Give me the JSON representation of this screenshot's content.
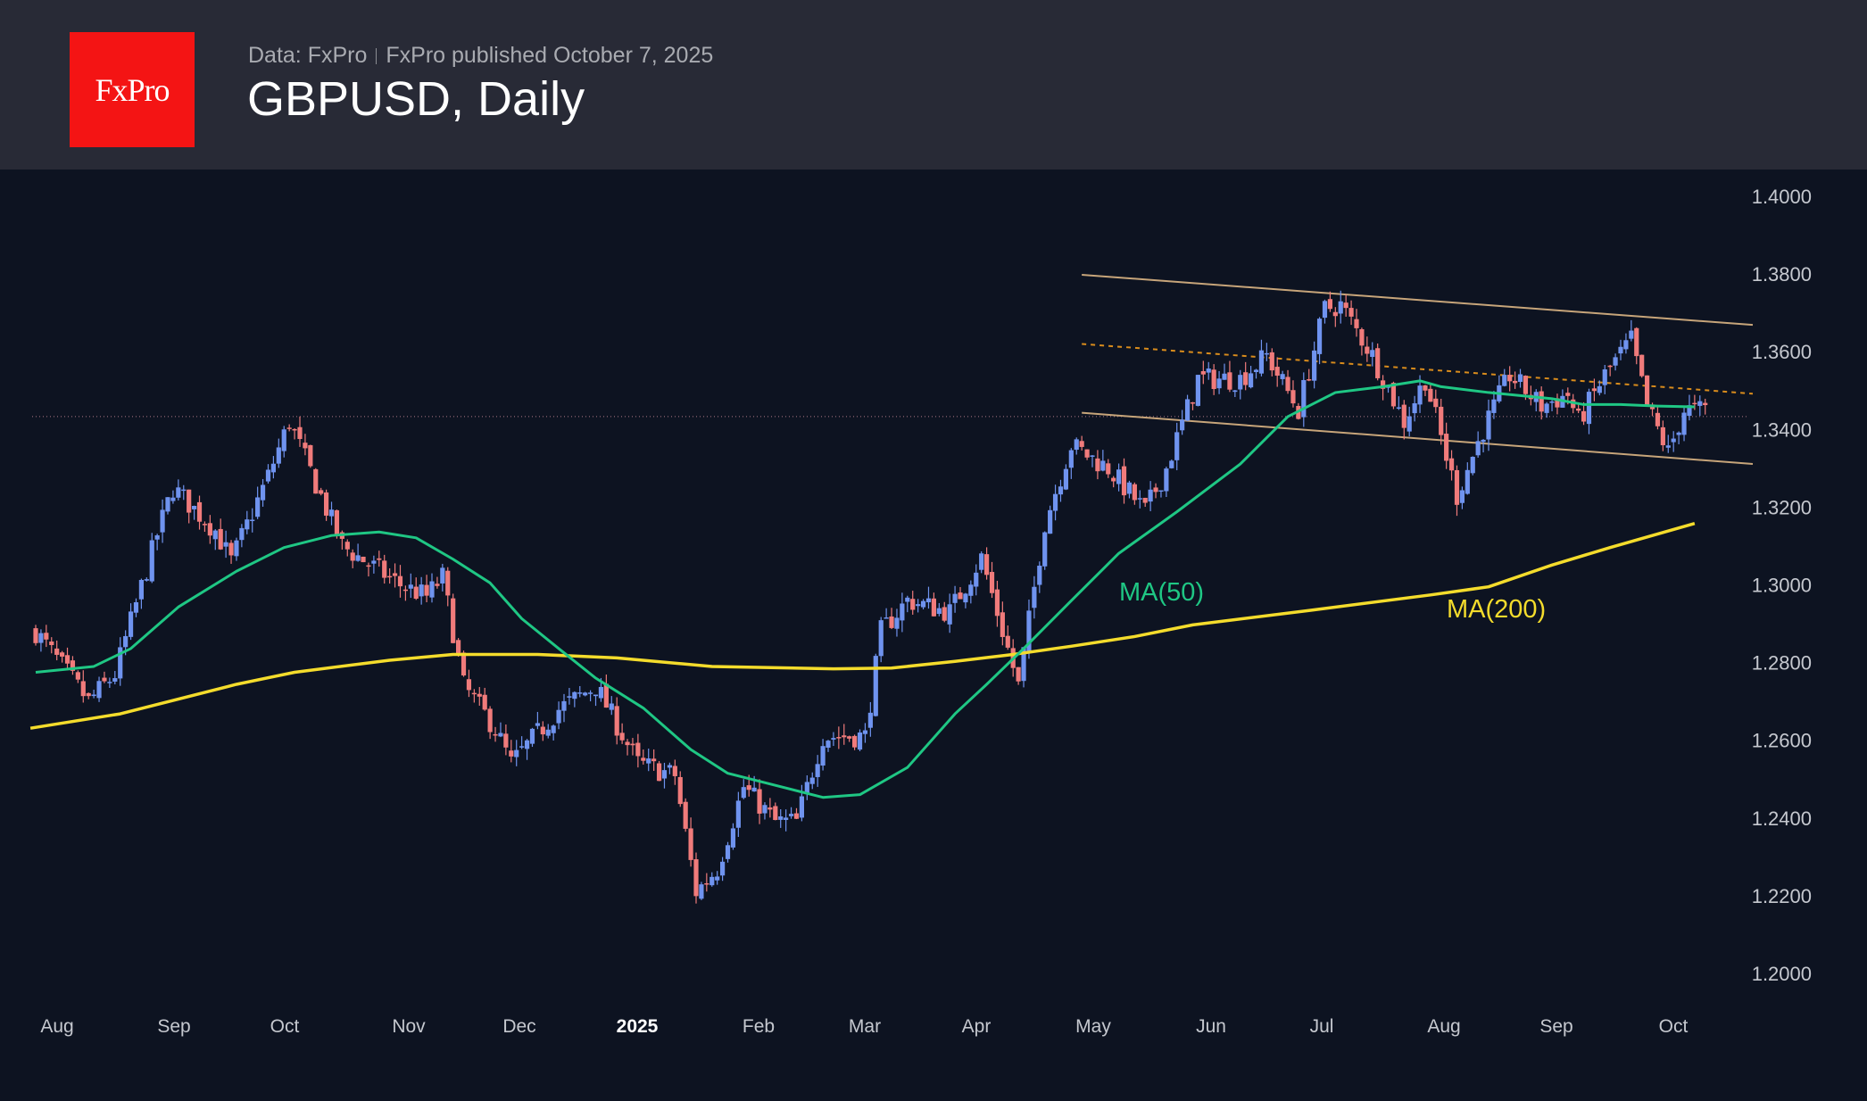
{
  "header": {
    "logo_text": "FxPro",
    "data_source": "Data: FxPro",
    "published": "FxPro published October 7, 2025",
    "title": "GBPUSD, Daily"
  },
  "colors": {
    "up": "#6f93ef",
    "down": "#f07b7b",
    "ma50": "#1fc784",
    "ma200": "#f4dc2c",
    "channel": "#c7a57a",
    "midline": "#d98c1c",
    "background": "#0d1321",
    "header": "#282a36",
    "logo": "#f41414"
  },
  "chart_data": {
    "type": "candlestick",
    "title": "GBPUSD, Daily",
    "start_date": "2024-07-22",
    "end_date": "2025-10-07",
    "ylim": [
      1.19,
      1.405
    ],
    "y_ticks": [
      "1.4000",
      "1.3800",
      "1.3600",
      "1.3400",
      "1.3200",
      "1.3000",
      "1.2800",
      "1.2600",
      "1.2400",
      "1.2200",
      "1.2000"
    ],
    "x_ticks": [
      {
        "label": "Aug"
      },
      {
        "label": "Sep"
      },
      {
        "label": "Oct"
      },
      {
        "label": "Nov"
      },
      {
        "label": "Dec"
      },
      {
        "label": "2025",
        "bold": true
      },
      {
        "label": "Feb"
      },
      {
        "label": "Mar"
      },
      {
        "label": "Apr"
      },
      {
        "label": "May"
      },
      {
        "label": "Jun"
      },
      {
        "label": "Jul"
      },
      {
        "label": "Aug"
      },
      {
        "label": "Sep"
      },
      {
        "label": "Oct"
      }
    ],
    "close_path": [
      [
        "2024-07-22",
        1.288
      ],
      [
        "2024-08-05",
        1.27
      ],
      [
        "2024-08-12",
        1.277
      ],
      [
        "2024-08-22",
        1.313
      ],
      [
        "2024-08-27",
        1.325
      ],
      [
        "2024-09-06",
        1.314
      ],
      [
        "2024-09-11",
        1.306
      ],
      [
        "2024-09-20",
        1.328
      ],
      [
        "2024-09-26",
        1.342
      ],
      [
        "2024-10-03",
        1.326
      ],
      [
        "2024-10-10",
        1.31
      ],
      [
        "2024-10-25",
        1.3
      ],
      [
        "2024-11-01",
        1.297
      ],
      [
        "2024-11-06",
        1.302
      ],
      [
        "2024-11-12",
        1.274
      ],
      [
        "2024-11-20",
        1.263
      ],
      [
        "2024-11-25",
        1.254
      ],
      [
        "2024-12-06",
        1.268
      ],
      [
        "2024-12-17",
        1.274
      ],
      [
        "2024-12-27",
        1.254
      ],
      [
        "2025-01-07",
        1.251
      ],
      [
        "2025-01-13",
        1.221
      ],
      [
        "2025-01-17",
        1.227
      ],
      [
        "2025-01-24",
        1.248
      ],
      [
        "2025-02-03",
        1.239
      ],
      [
        "2025-02-07",
        1.239
      ],
      [
        "2025-02-14",
        1.261
      ],
      [
        "2025-02-26",
        1.261
      ],
      [
        "2025-03-03",
        1.288
      ],
      [
        "2025-03-10",
        1.296
      ],
      [
        "2025-03-20",
        1.293
      ],
      [
        "2025-03-28",
        1.307
      ],
      [
        "2025-04-08",
        1.274
      ],
      [
        "2025-04-15",
        1.316
      ],
      [
        "2025-04-22",
        1.336
      ],
      [
        "2025-05-01",
        1.33
      ],
      [
        "2025-05-12",
        1.319
      ],
      [
        "2025-05-16",
        1.33
      ],
      [
        "2025-05-26",
        1.353
      ],
      [
        "2025-06-05",
        1.353
      ],
      [
        "2025-06-12",
        1.359
      ],
      [
        "2025-06-20",
        1.345
      ],
      [
        "2025-06-27",
        1.371
      ],
      [
        "2025-07-02",
        1.372
      ],
      [
        "2025-07-10",
        1.359
      ],
      [
        "2025-07-18",
        1.342
      ],
      [
        "2025-07-24",
        1.353
      ],
      [
        "2025-08-01",
        1.323
      ],
      [
        "2025-08-08",
        1.34
      ],
      [
        "2025-08-15",
        1.354
      ],
      [
        "2025-08-25",
        1.346
      ],
      [
        "2025-09-01",
        1.349
      ],
      [
        "2025-09-03",
        1.342
      ],
      [
        "2025-09-10",
        1.354
      ],
      [
        "2025-09-17",
        1.363
      ],
      [
        "2025-09-22",
        1.346
      ],
      [
        "2025-09-26",
        1.334
      ],
      [
        "2025-10-01",
        1.345
      ],
      [
        "2025-10-07",
        1.345
      ]
    ],
    "ma50": {
      "label": "MA(50)",
      "path": [
        [
          0,
          1.2775
        ],
        [
          11,
          1.279
        ],
        [
          18,
          1.2836
        ],
        [
          27,
          1.2943
        ],
        [
          38,
          1.3035
        ],
        [
          47,
          1.3096
        ],
        [
          56,
          1.3127
        ],
        [
          65,
          1.3136
        ],
        [
          72,
          1.3121
        ],
        [
          79,
          1.3066
        ],
        [
          86,
          1.3005
        ],
        [
          92,
          1.2913
        ],
        [
          99,
          1.2836
        ],
        [
          106,
          1.276
        ],
        [
          115,
          1.2683
        ],
        [
          124,
          1.2576
        ],
        [
          131,
          1.2515
        ],
        [
          140,
          1.2484
        ],
        [
          149,
          1.2453
        ],
        [
          156,
          1.246
        ],
        [
          165,
          1.253
        ],
        [
          174,
          1.2668
        ],
        [
          180,
          1.2744
        ],
        [
          187,
          1.2836
        ],
        [
          196,
          1.2959
        ],
        [
          205,
          1.3081
        ],
        [
          216,
          1.3188
        ],
        [
          228,
          1.3311
        ],
        [
          237,
          1.3433
        ],
        [
          246,
          1.3495
        ],
        [
          255,
          1.351
        ],
        [
          262,
          1.3525
        ],
        [
          266,
          1.351
        ],
        [
          275,
          1.3495
        ],
        [
          287,
          1.3479
        ],
        [
          293,
          1.3464
        ],
        [
          300,
          1.3464
        ],
        [
          307,
          1.346
        ],
        [
          314,
          1.3458
        ]
      ]
    },
    "ma200": {
      "label": "MA(200)",
      "path": [
        [
          -1,
          1.2631
        ],
        [
          16,
          1.2668
        ],
        [
          38,
          1.2744
        ],
        [
          49,
          1.2775
        ],
        [
          67,
          1.2806
        ],
        [
          79,
          1.2821
        ],
        [
          95,
          1.2821
        ],
        [
          110,
          1.2812
        ],
        [
          128,
          1.279
        ],
        [
          151,
          1.2784
        ],
        [
          162,
          1.2786
        ],
        [
          174,
          1.2803
        ],
        [
          185,
          1.2821
        ],
        [
          196,
          1.2842
        ],
        [
          208,
          1.2867
        ],
        [
          219,
          1.2897
        ],
        [
          241,
          1.2934
        ],
        [
          264,
          1.2974
        ],
        [
          275,
          1.2995
        ],
        [
          287,
          1.3051
        ],
        [
          298,
          1.3096
        ],
        [
          314,
          1.3158
        ]
      ]
    },
    "channel_upper": [
      [
        198,
        1.3798
      ],
      [
        325,
        1.3669
      ]
    ],
    "channel_lower": [
      [
        198,
        1.3443
      ],
      [
        325,
        1.3311
      ]
    ],
    "channel_mid": [
      [
        198,
        1.362
      ],
      [
        325,
        1.3492
      ]
    ],
    "reference_level": 1.3433
  }
}
